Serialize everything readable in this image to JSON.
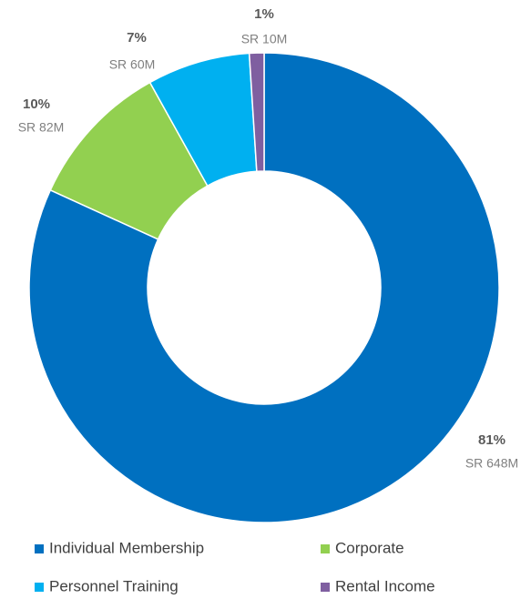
{
  "chart_data": {
    "type": "donut",
    "categories": [
      "Individual Membership",
      "Corporate",
      "Personnel Training",
      "Rental Income"
    ],
    "values": [
      81,
      10,
      7,
      1
    ],
    "value_labels": [
      "81%",
      "10%",
      "7%",
      "1%"
    ],
    "amount_labels": [
      "SR 648M",
      "SR 82M",
      "SR 60M",
      "SR 10M"
    ],
    "colors": [
      "#0070c0",
      "#92d050",
      "#00b0f0",
      "#7f5fa0"
    ],
    "legend": "bottom"
  }
}
